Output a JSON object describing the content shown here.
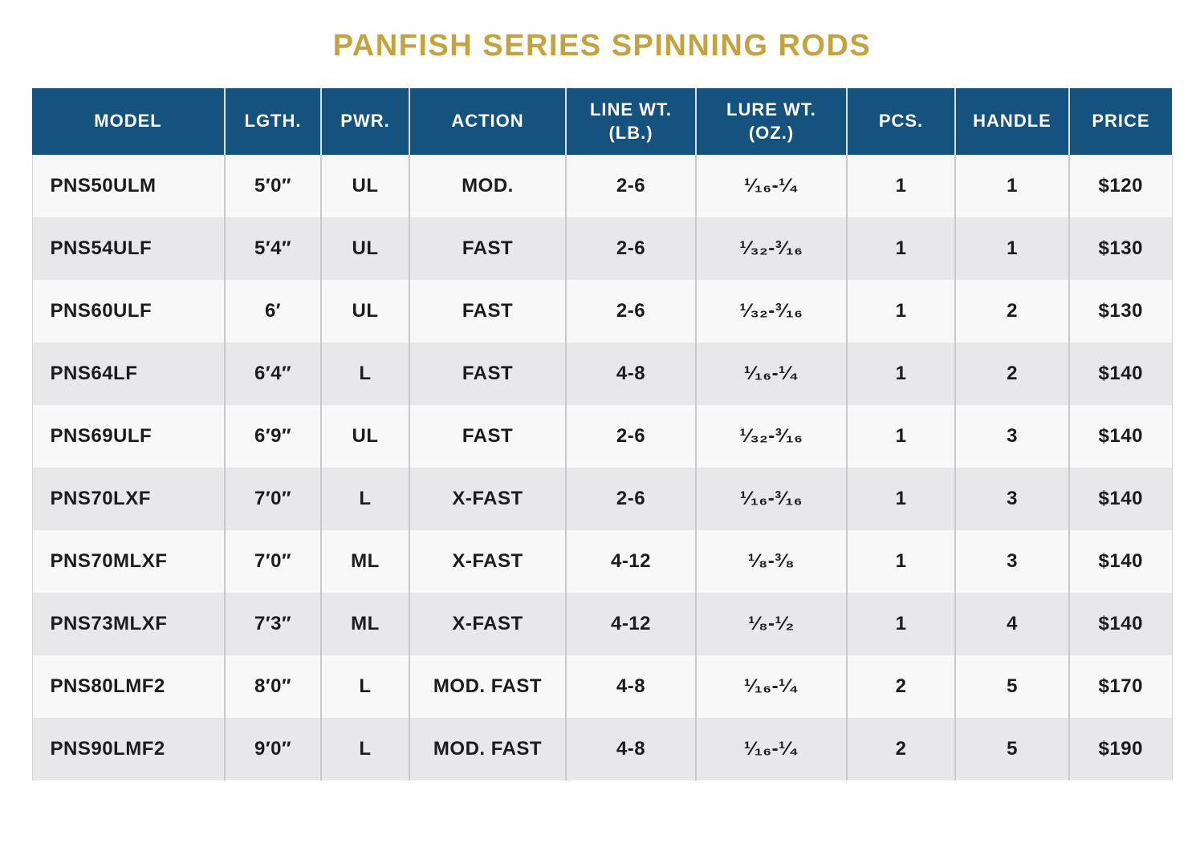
{
  "title": "PANFISH SERIES SPINNING RODS",
  "colors": {
    "title_gold": "#C4A23F",
    "header_bg": "#15527D",
    "header_text": "#FFFFFF",
    "row_light": "#F8F8F9",
    "row_dark": "#E8E8EA",
    "divider": "#C9C9CC",
    "body_text": "#1C1C1E"
  },
  "table": {
    "columns": [
      {
        "key": "model",
        "label": "MODEL"
      },
      {
        "key": "lgth",
        "label": "LGTH."
      },
      {
        "key": "pwr",
        "label": "PWR."
      },
      {
        "key": "action",
        "label": "ACTION"
      },
      {
        "key": "line_wt",
        "label": "LINE WT.\n(LB.)"
      },
      {
        "key": "lure_wt",
        "label": "LURE WT.\n(OZ.)"
      },
      {
        "key": "pcs",
        "label": "PCS."
      },
      {
        "key": "handle",
        "label": "HANDLE"
      },
      {
        "key": "price",
        "label": "PRICE"
      }
    ],
    "rows": [
      {
        "model": "PNS50ULM",
        "lgth": "5′0″",
        "pwr": "UL",
        "action": "MOD.",
        "line_wt": "2-6",
        "lure_wt": "¹⁄₁₆-¹⁄₄",
        "pcs": "1",
        "handle": "1",
        "price": "$120"
      },
      {
        "model": "PNS54ULF",
        "lgth": "5′4″",
        "pwr": "UL",
        "action": "FAST",
        "line_wt": "2-6",
        "lure_wt": "¹⁄₃₂-³⁄₁₆",
        "pcs": "1",
        "handle": "1",
        "price": "$130"
      },
      {
        "model": "PNS60ULF",
        "lgth": "6′",
        "pwr": "UL",
        "action": "FAST",
        "line_wt": "2-6",
        "lure_wt": "¹⁄₃₂-³⁄₁₆",
        "pcs": "1",
        "handle": "2",
        "price": "$130"
      },
      {
        "model": "PNS64LF",
        "lgth": "6′4″",
        "pwr": "L",
        "action": "FAST",
        "line_wt": "4-8",
        "lure_wt": "¹⁄₁₆-¹⁄₄",
        "pcs": "1",
        "handle": "2",
        "price": "$140"
      },
      {
        "model": "PNS69ULF",
        "lgth": "6′9″",
        "pwr": "UL",
        "action": "FAST",
        "line_wt": "2-6",
        "lure_wt": "¹⁄₃₂-³⁄₁₆",
        "pcs": "1",
        "handle": "3",
        "price": "$140"
      },
      {
        "model": "PNS70LXF",
        "lgth": "7′0″",
        "pwr": "L",
        "action": "X-FAST",
        "line_wt": "2-6",
        "lure_wt": "¹⁄₁₆-³⁄₁₆",
        "pcs": "1",
        "handle": "3",
        "price": "$140"
      },
      {
        "model": "PNS70MLXF",
        "lgth": "7′0″",
        "pwr": "ML",
        "action": "X-FAST",
        "line_wt": "4-12",
        "lure_wt": "¹⁄₈-³⁄₈",
        "pcs": "1",
        "handle": "3",
        "price": "$140"
      },
      {
        "model": "PNS73MLXF",
        "lgth": "7′3″",
        "pwr": "ML",
        "action": "X-FAST",
        "line_wt": "4-12",
        "lure_wt": "¹⁄₈-¹⁄₂",
        "pcs": "1",
        "handle": "4",
        "price": "$140"
      },
      {
        "model": "PNS80LMF2",
        "lgth": "8′0″",
        "pwr": "L",
        "action": "MOD. FAST",
        "line_wt": "4-8",
        "lure_wt": "¹⁄₁₆-¹⁄₄",
        "pcs": "2",
        "handle": "5",
        "price": "$170"
      },
      {
        "model": "PNS90LMF2",
        "lgth": "9′0″",
        "pwr": "L",
        "action": "MOD. FAST",
        "line_wt": "4-8",
        "lure_wt": "¹⁄₁₆-¹⁄₄",
        "pcs": "2",
        "handle": "5",
        "price": "$190"
      }
    ]
  }
}
